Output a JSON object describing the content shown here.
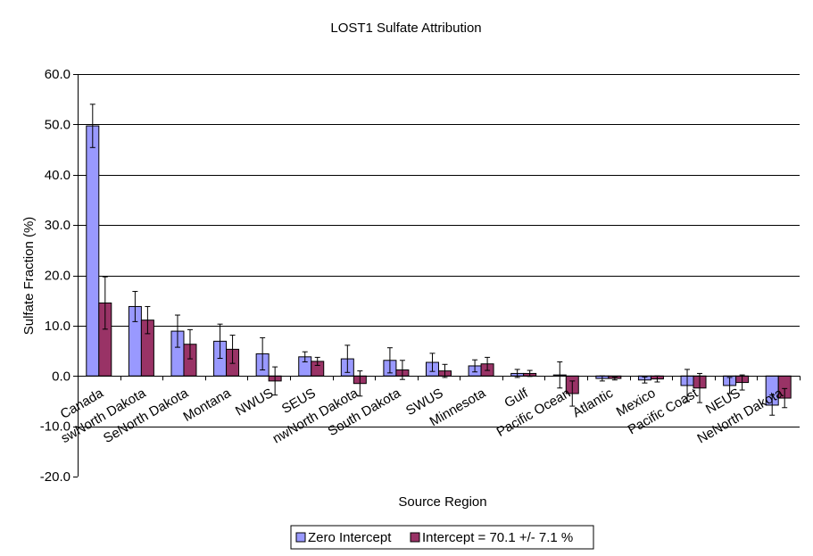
{
  "chart_data": {
    "type": "bar",
    "title": "LOST1 Sulfate Attribution",
    "xlabel": "Source Region",
    "ylabel": "Sulfate Fraction (%)",
    "ylim": [
      -20,
      60
    ],
    "ytick_step": 10,
    "grid": true,
    "legend_position": "bottom",
    "categories": [
      "Canada",
      "swNorth Dakota",
      "SeNorth Dakota",
      "Montana",
      "NWUS",
      "SEUS",
      "nwNorth Dakota",
      "South Dakota",
      "SWUS",
      "Minnesota",
      "Gulf",
      "Pacific Ocean",
      "Atlantic",
      "Mexico",
      "Pacific Coast",
      "NEUS",
      "NeNorth Dakota"
    ],
    "series": [
      {
        "name": "Zero Intercept",
        "color": "#9999FF",
        "values": [
          49.7,
          13.8,
          8.9,
          6.9,
          4.4,
          3.8,
          3.4,
          3.1,
          2.7,
          2.0,
          0.5,
          0.2,
          -0.5,
          -0.8,
          -1.9,
          -1.9,
          -5.8
        ],
        "errors": [
          4.3,
          3.0,
          3.2,
          3.4,
          3.2,
          1.0,
          2.7,
          2.5,
          1.8,
          1.2,
          0.8,
          2.6,
          0.5,
          0.6,
          3.2,
          1.6,
          2.0
        ]
      },
      {
        "name": "Intercept = 70.1 +/- 7.1 %",
        "color": "#993366",
        "values": [
          14.5,
          11.1,
          6.3,
          5.3,
          -1.0,
          2.9,
          -1.5,
          1.2,
          1.0,
          2.4,
          0.5,
          -3.5,
          -0.5,
          -0.6,
          -2.4,
          -1.3,
          -4.4
        ],
        "errors": [
          5.2,
          2.7,
          2.9,
          2.8,
          2.8,
          0.8,
          2.5,
          1.9,
          1.3,
          1.3,
          0.6,
          2.5,
          0.3,
          0.6,
          2.9,
          1.5,
          1.9
        ]
      }
    ],
    "yticks": [
      "60.0",
      "50.0",
      "40.0",
      "30.0",
      "20.0",
      "10.0",
      "0.0",
      "-10.0",
      "-20.0"
    ]
  }
}
